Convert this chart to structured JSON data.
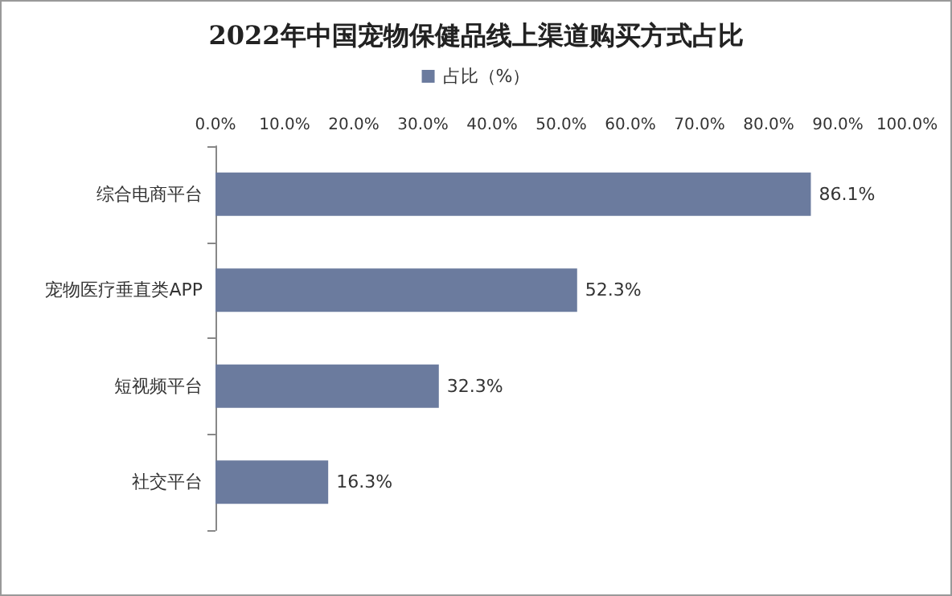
{
  "chart_data": {
    "type": "bar",
    "orientation": "horizontal",
    "title": "2022年中国宠物保健品线上渠道购买方式占比",
    "categories": [
      "综合电商平台",
      "宠物医疗垂直类APP",
      "短视频平台",
      "社交平台"
    ],
    "series": [
      {
        "name": "占比（%）",
        "color": "#6b7b9e",
        "values": [
          86.1,
          52.3,
          32.3,
          16.3
        ],
        "value_labels": [
          "86.1%",
          "52.3%",
          "32.3%",
          "16.3%"
        ]
      }
    ],
    "xlim": [
      0,
      100
    ],
    "xticks": [
      {
        "value": 0,
        "label": "0.0%"
      },
      {
        "value": 10,
        "label": "10.0%"
      },
      {
        "value": 20,
        "label": "20.0%"
      },
      {
        "value": 30,
        "label": "30.0%"
      },
      {
        "value": 40,
        "label": "40.0%"
      },
      {
        "value": 50,
        "label": "50.0%"
      },
      {
        "value": 60,
        "label": "60.0%"
      },
      {
        "value": 70,
        "label": "70.0%"
      },
      {
        "value": 80,
        "label": "80.0%"
      },
      {
        "value": 90,
        "label": "90.0%"
      },
      {
        "value": 100,
        "label": "100.0%"
      }
    ],
    "legend": "top",
    "grid": false
  }
}
